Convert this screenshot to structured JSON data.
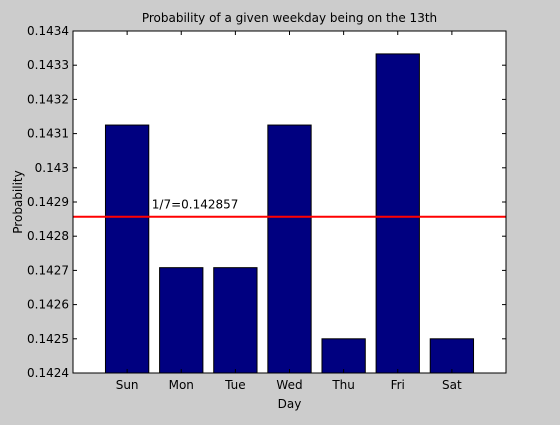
{
  "chart_data": {
    "type": "bar",
    "title": "Probability of a given weekday being on the 13th",
    "xlabel": "Day",
    "ylabel": "Probability",
    "categories": [
      "Sun",
      "Mon",
      "Tue",
      "Wed",
      "Thu",
      "Fri",
      "Sat"
    ],
    "values": [
      0.143125,
      0.142708,
      0.142708,
      0.143125,
      0.1425,
      0.143333,
      0.1425
    ],
    "ylim": [
      0.1424,
      0.1434
    ],
    "yticks": [
      0.1424,
      0.1425,
      0.1426,
      0.1427,
      0.1428,
      0.1429,
      0.143,
      0.1431,
      0.1432,
      0.1433,
      0.1434
    ],
    "ytick_labels": [
      "0.1424",
      "0.1425",
      "0.1426",
      "0.1427",
      "0.1428",
      "0.1429",
      "0.143",
      "0.1431",
      "0.1432",
      "0.1433",
      "0.1434"
    ],
    "grid": false,
    "legend": "none",
    "reference_line": {
      "value": 0.142857,
      "label": "1/7=0.142857",
      "color": "#ff0000"
    },
    "colors": {
      "bar_fill": "#000080",
      "axes_background": "#ffffff",
      "figure_background": "#cccccc"
    }
  }
}
